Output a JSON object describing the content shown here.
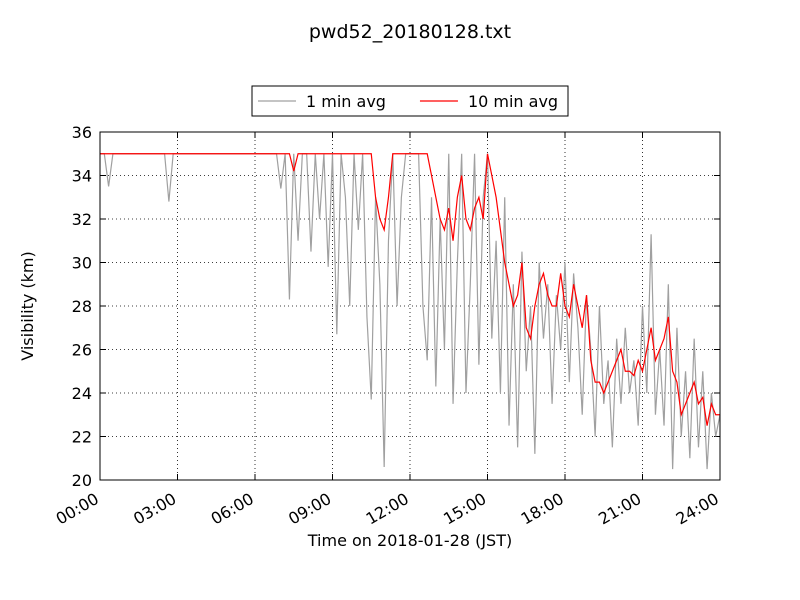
{
  "chart_data": {
    "type": "line",
    "title": "pwd52_20180128.txt",
    "x_label": "Time on 2018-01-28 (JST)",
    "y_label": "Visibility (km)",
    "x": [
      0,
      10,
      20,
      30,
      40,
      50,
      60,
      70,
      80,
      90,
      100,
      110,
      120,
      130,
      140,
      150,
      160,
      170,
      180,
      190,
      200,
      210,
      220,
      230,
      240,
      250,
      260,
      270,
      280,
      290,
      300,
      310,
      320,
      330,
      340,
      350,
      360,
      370,
      380,
      390,
      400,
      410,
      420,
      430,
      440,
      450,
      460,
      470,
      480,
      490,
      500,
      510,
      520,
      530,
      540,
      550,
      560,
      570,
      580,
      590,
      600,
      610,
      620,
      630,
      640,
      650,
      660,
      670,
      680,
      690,
      700,
      710,
      720,
      730,
      740,
      750,
      760,
      770,
      780,
      790,
      800,
      810,
      820,
      830,
      840,
      850,
      860,
      870,
      880,
      890,
      900,
      910,
      920,
      930,
      940,
      950,
      960,
      970,
      980,
      990,
      1000,
      1010,
      1020,
      1030,
      1040,
      1050,
      1060,
      1070,
      1080,
      1090,
      1100,
      1110,
      1120,
      1130,
      1140,
      1150,
      1160,
      1170,
      1180,
      1190,
      1200,
      1210,
      1220,
      1230,
      1240,
      1250,
      1260,
      1270,
      1280,
      1290,
      1300,
      1310,
      1320,
      1330,
      1340,
      1350,
      1360,
      1370,
      1380,
      1390,
      1400,
      1410,
      1420,
      1430,
      1440
    ],
    "series": [
      {
        "name": "1 min avg",
        "color": "#a0a0a0",
        "values": [
          35,
          35,
          33.5,
          35,
          35,
          35,
          35,
          35,
          35,
          35,
          35,
          35,
          35,
          35,
          35,
          35,
          32.8,
          35,
          35,
          35,
          35,
          35,
          35,
          35,
          35,
          35,
          35,
          35,
          35,
          35,
          35,
          35,
          35,
          35,
          35,
          35,
          35,
          35,
          35,
          35,
          35,
          35,
          33.4,
          35,
          28.3,
          35,
          31,
          35,
          35,
          30.5,
          35,
          32,
          35,
          29.8,
          35,
          26.7,
          35,
          33,
          28,
          35,
          31.5,
          35,
          27.5,
          23.7,
          33,
          29,
          20.6,
          31,
          35,
          28,
          33,
          35,
          35,
          35,
          35,
          28,
          25.5,
          33,
          24.3,
          32,
          26,
          35,
          23.5,
          30,
          35,
          24,
          29,
          35,
          25.3,
          33,
          35,
          26.5,
          31,
          24,
          33,
          22.5,
          29,
          21.5,
          30.5,
          25,
          28,
          21.2,
          30,
          26.5,
          29,
          23.5,
          28.5,
          26,
          30,
          24.5,
          29.5,
          27,
          23,
          28.5,
          26,
          22,
          28,
          23.5,
          25.5,
          21.5,
          26.5,
          23.5,
          27,
          24,
          25.5,
          22.5,
          28,
          24,
          31.3,
          23,
          26,
          22.5,
          29,
          20.5,
          27,
          22,
          25,
          21,
          26.5,
          21.5,
          25,
          20.5,
          24,
          22,
          23
        ]
      },
      {
        "name": "10 min avg",
        "color": "#ff0000",
        "values": [
          35,
          35,
          35,
          35,
          35,
          35,
          35,
          35,
          35,
          35,
          35,
          35,
          35,
          35,
          35,
          35,
          35,
          35,
          35,
          35,
          35,
          35,
          35,
          35,
          35,
          35,
          35,
          35,
          35,
          35,
          35,
          35,
          35,
          35,
          35,
          35,
          35,
          35,
          35,
          35,
          35,
          35,
          35,
          35,
          35,
          34.2,
          35,
          35,
          35,
          35,
          35,
          35,
          35,
          35,
          35,
          35,
          35,
          35,
          35,
          35,
          35,
          35,
          35,
          35,
          33,
          32,
          31.5,
          33,
          35,
          35,
          35,
          35,
          35,
          35,
          35,
          35,
          35,
          34,
          33,
          32,
          31.5,
          32.5,
          31,
          33,
          34,
          32,
          31.5,
          32.5,
          33,
          32,
          35,
          34,
          33,
          31.5,
          30,
          29,
          28,
          28.5,
          30,
          27,
          26.5,
          28,
          29,
          29.5,
          28.5,
          28,
          28,
          29.5,
          28,
          27.5,
          29,
          28,
          27,
          28.5,
          25.5,
          24.5,
          24.5,
          24,
          24.5,
          25,
          25.5,
          26,
          25,
          25,
          24.8,
          25.5,
          25,
          26,
          27,
          25.5,
          26,
          26.5,
          27.5,
          25,
          24.5,
          23,
          23.5,
          24,
          24.5,
          23.5,
          23.8,
          22.5,
          23.5,
          23,
          23
        ]
      }
    ],
    "xlim": [
      0,
      1440
    ],
    "xticks": [
      {
        "value": 0,
        "label": "00:00"
      },
      {
        "value": 180,
        "label": "03:00"
      },
      {
        "value": 360,
        "label": "06:00"
      },
      {
        "value": 540,
        "label": "09:00"
      },
      {
        "value": 720,
        "label": "12:00"
      },
      {
        "value": 900,
        "label": "15:00"
      },
      {
        "value": 1080,
        "label": "18:00"
      },
      {
        "value": 1260,
        "label": "21:00"
      },
      {
        "value": 1440,
        "label": "24:00"
      }
    ],
    "ylim": [
      20,
      36
    ],
    "yticks": [
      20,
      22,
      24,
      26,
      28,
      30,
      32,
      34,
      36
    ],
    "grid": true,
    "legend": "top"
  }
}
